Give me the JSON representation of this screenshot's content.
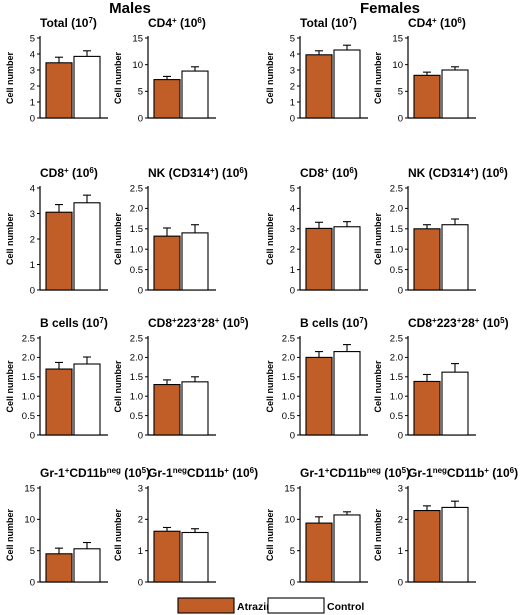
{
  "groups": [
    "Males",
    "Females"
  ],
  "legend": [
    {
      "label": "Atrazine",
      "color": "#c15e27"
    },
    {
      "label": "Control",
      "color": "#ffffff"
    }
  ],
  "colors": {
    "atrazine": "#c15e27",
    "control": "#ffffff",
    "axis": "#000000"
  },
  "chart_data": [
    {
      "type": "bar",
      "group": "Males",
      "title_parts": [
        [
          "Total (10",
          ""
        ],
        [
          "7",
          "sup"
        ],
        [
          ")",
          ""
        ]
      ],
      "ylabel": "Cell number",
      "ylim": [
        0,
        5
      ],
      "ticks": [
        0,
        1,
        2,
        3,
        4,
        5
      ],
      "categories": [
        "Atrazine",
        "Control"
      ],
      "values": [
        3.45,
        3.85
      ],
      "errors": [
        0.35,
        0.35
      ],
      "grid": false
    },
    {
      "type": "bar",
      "group": "Males",
      "title_parts": [
        [
          "CD4",
          ""
        ],
        [
          "+",
          "sup"
        ],
        [
          " (10",
          ""
        ],
        [
          "6",
          "sup"
        ],
        [
          ")",
          ""
        ]
      ],
      "ylabel": "Cell number",
      "ylim": [
        0,
        15
      ],
      "ticks": [
        0,
        5,
        10,
        15
      ],
      "categories": [
        "Atrazine",
        "Control"
      ],
      "values": [
        7.2,
        8.8
      ],
      "errors": [
        0.6,
        0.8
      ],
      "grid": false
    },
    {
      "type": "bar",
      "group": "Females",
      "title_parts": [
        [
          "Total (10",
          ""
        ],
        [
          "7",
          "sup"
        ],
        [
          ")",
          ""
        ]
      ],
      "ylabel": "Cell number",
      "ylim": [
        0,
        5
      ],
      "ticks": [
        0,
        1,
        2,
        3,
        4,
        5
      ],
      "categories": [
        "Atrazine",
        "Control"
      ],
      "values": [
        3.95,
        4.25
      ],
      "errors": [
        0.25,
        0.3
      ],
      "grid": false
    },
    {
      "type": "bar",
      "group": "Females",
      "title_parts": [
        [
          "CD4",
          ""
        ],
        [
          "+",
          "sup"
        ],
        [
          " (10",
          ""
        ],
        [
          "6",
          "sup"
        ],
        [
          ")",
          ""
        ]
      ],
      "ylabel": "Cell number",
      "ylim": [
        0,
        15
      ],
      "ticks": [
        0,
        5,
        10,
        15
      ],
      "categories": [
        "Atrazine",
        "Control"
      ],
      "values": [
        8.0,
        9.0
      ],
      "errors": [
        0.6,
        0.6
      ],
      "grid": false
    },
    {
      "type": "bar",
      "group": "Males",
      "title_parts": [
        [
          "CD8",
          ""
        ],
        [
          "+",
          "sup"
        ],
        [
          " (10",
          ""
        ],
        [
          "6",
          "sup"
        ],
        [
          ")",
          ""
        ]
      ],
      "ylabel": "Cell number",
      "ylim": [
        0,
        4
      ],
      "ticks": [
        0,
        1,
        2,
        3,
        4
      ],
      "categories": [
        "Atrazine",
        "Control"
      ],
      "values": [
        3.05,
        3.42
      ],
      "errors": [
        0.3,
        0.3
      ],
      "grid": false
    },
    {
      "type": "bar",
      "group": "Males",
      "title_parts": [
        [
          "NK (CD314",
          ""
        ],
        [
          "+",
          "sup"
        ],
        [
          ") (10",
          ""
        ],
        [
          "6",
          "sup"
        ],
        [
          ")",
          ""
        ]
      ],
      "ylabel": "Cell number",
      "ylim": [
        0,
        2.5
      ],
      "ticks": [
        0,
        0.5,
        1.0,
        1.5,
        2.0,
        2.5
      ],
      "categories": [
        "Atrazine",
        "Control"
      ],
      "values": [
        1.32,
        1.4
      ],
      "errors": [
        0.2,
        0.2
      ],
      "grid": false
    },
    {
      "type": "bar",
      "group": "Females",
      "title_parts": [
        [
          "CD8",
          ""
        ],
        [
          "+",
          "sup"
        ],
        [
          " (10",
          ""
        ],
        [
          "6",
          "sup"
        ],
        [
          ")",
          ""
        ]
      ],
      "ylabel": "Cell number",
      "ylim": [
        0,
        5
      ],
      "ticks": [
        0,
        1,
        2,
        3,
        4,
        5
      ],
      "categories": [
        "Atrazine",
        "Control"
      ],
      "values": [
        3.02,
        3.1
      ],
      "errors": [
        0.3,
        0.25
      ],
      "grid": false
    },
    {
      "type": "bar",
      "group": "Females",
      "title_parts": [
        [
          "NK (CD314",
          ""
        ],
        [
          "+",
          "sup"
        ],
        [
          ") (10",
          ""
        ],
        [
          "6",
          "sup"
        ],
        [
          ")",
          ""
        ]
      ],
      "ylabel": "Cell number",
      "ylim": [
        0,
        2.5
      ],
      "ticks": [
        0,
        0.5,
        1.0,
        1.5,
        2.0,
        2.5
      ],
      "categories": [
        "Atrazine",
        "Control"
      ],
      "values": [
        1.5,
        1.6
      ],
      "errors": [
        0.1,
        0.14
      ],
      "grid": false
    },
    {
      "type": "bar",
      "group": "Males",
      "title_parts": [
        [
          "B cells (10",
          ""
        ],
        [
          "7",
          "sup"
        ],
        [
          ")",
          ""
        ]
      ],
      "ylabel": "Cell number",
      "ylim": [
        0,
        2.5
      ],
      "ticks": [
        0,
        0.5,
        1.0,
        1.5,
        2.0,
        2.5
      ],
      "categories": [
        "Atrazine",
        "Control"
      ],
      "values": [
        1.7,
        1.83
      ],
      "errors": [
        0.17,
        0.18
      ],
      "grid": false
    },
    {
      "type": "bar",
      "group": "Males",
      "title_parts": [
        [
          "CD8",
          ""
        ],
        [
          "+",
          "sup"
        ],
        [
          "223",
          ""
        ],
        [
          "+",
          "sup"
        ],
        [
          "28",
          ""
        ],
        [
          "+",
          "sup"
        ],
        [
          " (10",
          ""
        ],
        [
          "5",
          "sup"
        ],
        [
          ")",
          ""
        ]
      ],
      "ylabel": "Cell number",
      "ylim": [
        0,
        2.5
      ],
      "ticks": [
        0,
        0.5,
        1.0,
        1.5,
        2.0,
        2.5
      ],
      "categories": [
        "Atrazine",
        "Control"
      ],
      "values": [
        1.3,
        1.37
      ],
      "errors": [
        0.12,
        0.13
      ],
      "grid": false
    },
    {
      "type": "bar",
      "group": "Females",
      "title_parts": [
        [
          "B cells (10",
          ""
        ],
        [
          "7",
          "sup"
        ],
        [
          ")",
          ""
        ]
      ],
      "ylabel": "Cell number",
      "ylim": [
        0,
        2.5
      ],
      "ticks": [
        0,
        0.5,
        1.0,
        1.5,
        2.0,
        2.5
      ],
      "categories": [
        "Atrazine",
        "Control"
      ],
      "values": [
        2.0,
        2.15
      ],
      "errors": [
        0.15,
        0.18
      ],
      "grid": false
    },
    {
      "type": "bar",
      "group": "Females",
      "title_parts": [
        [
          "CD8",
          ""
        ],
        [
          "+",
          "sup"
        ],
        [
          "223",
          ""
        ],
        [
          "+",
          "sup"
        ],
        [
          "28",
          ""
        ],
        [
          "+",
          "sup"
        ],
        [
          " (10",
          ""
        ],
        [
          "5",
          "sup"
        ],
        [
          ")",
          ""
        ]
      ],
      "ylabel": "Cell number",
      "ylim": [
        0,
        2.5
      ],
      "ticks": [
        0,
        0.5,
        1.0,
        1.5,
        2.0,
        2.5
      ],
      "categories": [
        "Atrazine",
        "Control"
      ],
      "values": [
        1.38,
        1.62
      ],
      "errors": [
        0.18,
        0.22
      ],
      "grid": false
    },
    {
      "type": "bar",
      "group": "Males",
      "title_parts": [
        [
          "Gr-1",
          ""
        ],
        [
          "+",
          "sup"
        ],
        [
          "CD11b",
          ""
        ],
        [
          "neg",
          "sup"
        ],
        [
          " (10",
          ""
        ],
        [
          "5",
          "sup"
        ],
        [
          ")",
          ""
        ]
      ],
      "ylabel": "Cell number",
      "ylim": [
        0,
        15
      ],
      "ticks": [
        0,
        5,
        10,
        15
      ],
      "categories": [
        "Atrazine",
        "Control"
      ],
      "values": [
        4.5,
        5.3
      ],
      "errors": [
        0.9,
        1.0
      ],
      "grid": false
    },
    {
      "type": "bar",
      "group": "Males",
      "title_parts": [
        [
          "Gr-1",
          ""
        ],
        [
          "neg",
          "sup"
        ],
        [
          "CD11b",
          ""
        ],
        [
          "+",
          "sup"
        ],
        [
          " (10",
          ""
        ],
        [
          "6",
          "sup"
        ],
        [
          ")",
          ""
        ]
      ],
      "ylabel": "Cell number",
      "ylim": [
        0,
        3
      ],
      "ticks": [
        0,
        1,
        2,
        3
      ],
      "categories": [
        "Atrazine",
        "Control"
      ],
      "values": [
        1.62,
        1.58
      ],
      "errors": [
        0.12,
        0.12
      ],
      "grid": false
    },
    {
      "type": "bar",
      "group": "Females",
      "title_parts": [
        [
          "Gr-1",
          ""
        ],
        [
          "+",
          "sup"
        ],
        [
          "CD11b",
          ""
        ],
        [
          "neg",
          "sup"
        ],
        [
          " (10",
          ""
        ],
        [
          "5",
          "sup"
        ],
        [
          ")",
          ""
        ]
      ],
      "ylabel": "Cell number",
      "ylim": [
        0,
        15
      ],
      "ticks": [
        0,
        5,
        10,
        15
      ],
      "categories": [
        "Atrazine",
        "Control"
      ],
      "values": [
        9.4,
        10.7
      ],
      "errors": [
        1.0,
        0.5
      ],
      "grid": false
    },
    {
      "type": "bar",
      "group": "Females",
      "title_parts": [
        [
          "Gr-1",
          ""
        ],
        [
          "neg",
          "sup"
        ],
        [
          "CD11b",
          ""
        ],
        [
          "+",
          "sup"
        ],
        [
          " (10",
          ""
        ],
        [
          "6",
          "sup"
        ],
        [
          ")",
          ""
        ]
      ],
      "ylabel": "Cell number",
      "ylim": [
        0,
        3
      ],
      "ticks": [
        0,
        1,
        2,
        3
      ],
      "categories": [
        "Atrazine",
        "Control"
      ],
      "values": [
        2.28,
        2.38
      ],
      "errors": [
        0.15,
        0.2
      ],
      "grid": false
    }
  ]
}
